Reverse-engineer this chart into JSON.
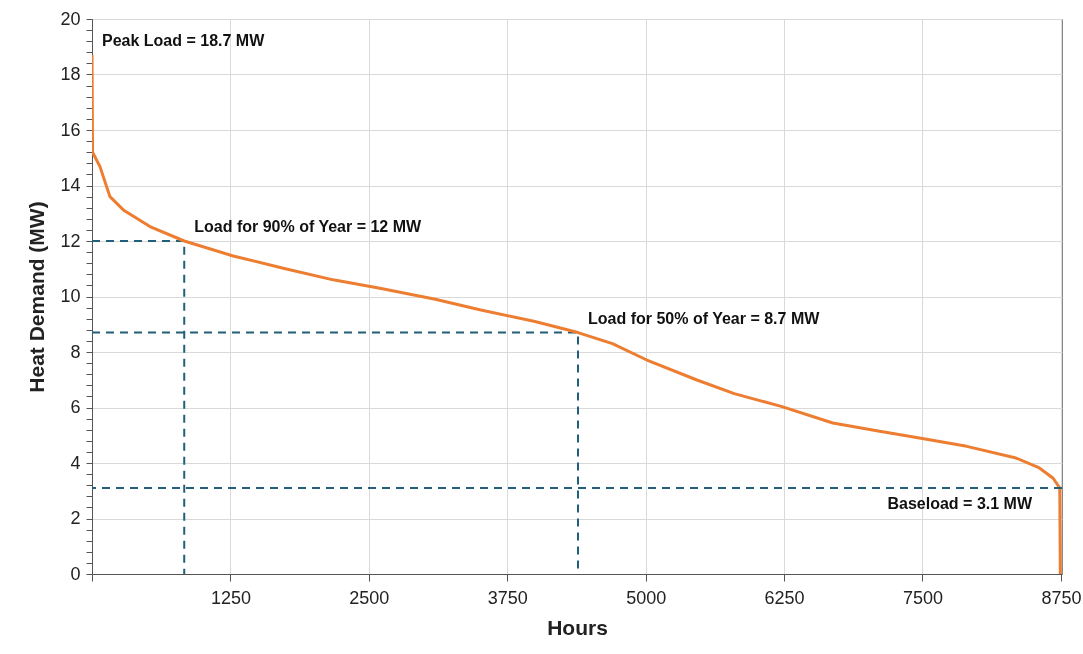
{
  "chart_data": {
    "type": "line",
    "xlabel": "Hours",
    "ylabel": "Heat Demand (MW)",
    "xlim": [
      0,
      8760
    ],
    "ylim": [
      0,
      20
    ],
    "xticks": [
      {
        "value": 0,
        "label": null
      },
      1250,
      2500,
      3750,
      5000,
      6250,
      7500,
      8750
    ],
    "yticks": [
      0,
      {
        "value": 0.4,
        "label": null
      },
      {
        "value": 0.8,
        "label": null
      },
      {
        "value": 1.2,
        "label": null
      },
      {
        "value": 1.6,
        "label": null
      },
      2,
      {
        "value": 2.4,
        "label": null
      },
      {
        "value": 2.8,
        "label": null
      },
      {
        "value": 3.2,
        "label": null
      },
      {
        "value": 3.6,
        "label": null
      },
      4,
      {
        "value": 4.4,
        "label": null
      },
      {
        "value": 4.8,
        "label": null
      },
      {
        "value": 5.2,
        "label": null
      },
      {
        "value": 5.6,
        "label": null
      },
      6,
      {
        "value": 6.4,
        "label": null
      },
      {
        "value": 6.8,
        "label": null
      },
      {
        "value": 7.2,
        "label": null
      },
      {
        "value": 7.6,
        "label": null
      },
      8,
      {
        "value": 8.4,
        "label": null
      },
      {
        "value": 8.8,
        "label": null
      },
      {
        "value": 9.2,
        "label": null
      },
      {
        "value": 9.6,
        "label": null
      },
      10,
      {
        "value": 10.4,
        "label": null
      },
      {
        "value": 10.8,
        "label": null
      },
      {
        "value": 11.2,
        "label": null
      },
      {
        "value": 11.6,
        "label": null
      },
      12,
      {
        "value": 12.4,
        "label": null
      },
      {
        "value": 12.8,
        "label": null
      },
      {
        "value": 13.2,
        "label": null
      },
      {
        "value": 13.6,
        "label": null
      },
      14,
      {
        "value": 14.4,
        "label": null
      },
      {
        "value": 14.8,
        "label": null
      },
      {
        "value": 15.2,
        "label": null
      },
      {
        "value": 15.6,
        "label": null
      },
      16,
      {
        "value": 16.4,
        "label": null
      },
      {
        "value": 16.8,
        "label": null
      },
      {
        "value": 17.2,
        "label": null
      },
      {
        "value": 17.6,
        "label": null
      },
      18,
      {
        "value": 18.4,
        "label": null
      },
      {
        "value": 18.8,
        "label": null
      },
      {
        "value": 19.2,
        "label": null
      },
      {
        "value": 19.6,
        "label": null
      },
      20
    ],
    "grid": true,
    "series": [
      {
        "color": "#ed7d31",
        "x": [
          0,
          5,
          72,
          162,
          283,
          523,
          833,
          1275,
          1727,
          2178,
          2600,
          3100,
          3502,
          4000,
          4389,
          4700,
          5006,
          5457,
          5800,
          6224,
          6690,
          7100,
          7473,
          7900,
          8345,
          8556,
          8680,
          8740,
          8745
        ],
        "values": [
          18.7,
          15.2,
          14.68,
          13.6,
          13.12,
          12.52,
          12.0,
          11.46,
          11.02,
          10.6,
          10.3,
          9.9,
          9.52,
          9.1,
          8.7,
          8.3,
          7.72,
          7.0,
          6.5,
          6.04,
          5.44,
          5.15,
          4.9,
          4.6,
          4.18,
          3.82,
          3.45,
          3.1,
          0
        ]
      },
      {
        "type": "line",
        "line_style": "dashed",
        "color": "#215f7a",
        "x": [
          0,
          833,
          833
        ],
        "values": [
          12,
          12,
          0
        ]
      },
      {
        "type": "line",
        "line_style": "dashed",
        "color": "#215f7a",
        "x": [
          0,
          4389,
          4389
        ],
        "values": [
          8.7,
          8.7,
          0
        ]
      }
    ],
    "ref_lines": [
      {
        "axis": "y",
        "value": 3.1,
        "label": "Baseload = 3.1 MW",
        "color": "#215f7a",
        "line_style": "dashed"
      }
    ],
    "annotations": [
      {
        "text": "Peak Load = 18.7 MW",
        "x": 0,
        "y": 18.7
      },
      {
        "text": "Load for 90% of Year  = 12 MW",
        "x": 833,
        "y": 12
      },
      {
        "text": "Load for 50% of Year = 8.7 MW",
        "x": 4389,
        "y": 8.7
      }
    ]
  }
}
